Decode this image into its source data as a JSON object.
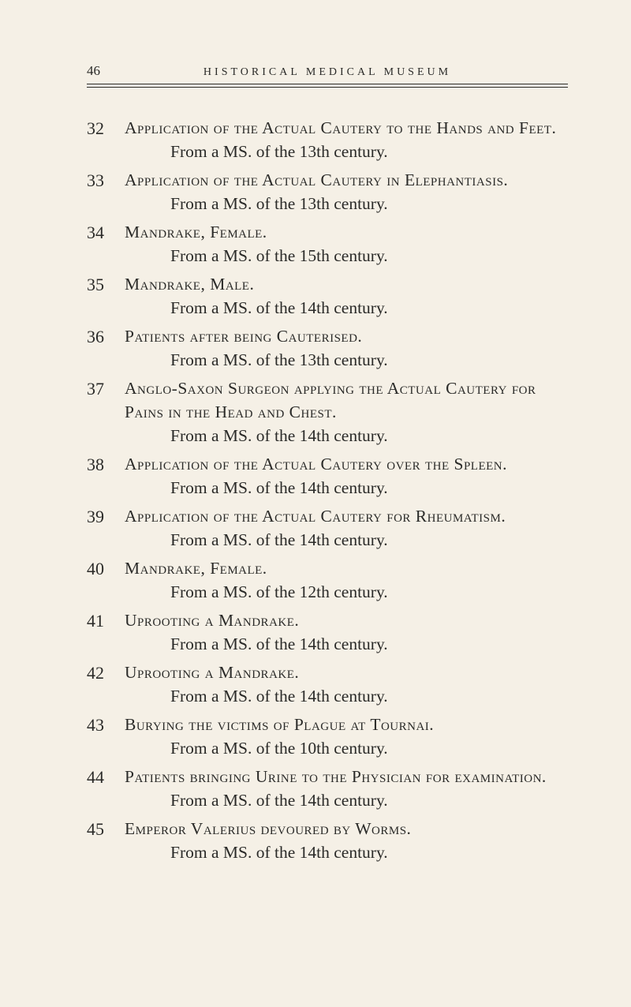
{
  "header": {
    "page_number": "46",
    "title": "HISTORICAL MEDICAL MUSEUM"
  },
  "entries": [
    {
      "num": "32",
      "title": "Application of the Actual Cautery to the Hands and Feet.",
      "source": "From a MS. of the 13th century."
    },
    {
      "num": "33",
      "title": "Application of the Actual Cautery in Elephantiasis.",
      "source": "From a MS. of the 13th century."
    },
    {
      "num": "34",
      "title": "Mandrake, Female.",
      "source": "From a MS. of the 15th century."
    },
    {
      "num": "35",
      "title": "Mandrake, Male.",
      "source": "From a MS. of the 14th century."
    },
    {
      "num": "36",
      "title": "Patients after being Cauterised.",
      "source": "From a MS. of the 13th century."
    },
    {
      "num": "37",
      "title": "Anglo-Saxon Surgeon applying the Actual Cautery for Pains in the Head and Chest.",
      "source": "From a MS. of the 14th century."
    },
    {
      "num": "38",
      "title": "Application of the Actual Cautery over the Spleen.",
      "source": "From a MS. of the 14th century."
    },
    {
      "num": "39",
      "title": "Application of the Actual Cautery for Rheumatism.",
      "source": "From a MS. of the 14th century."
    },
    {
      "num": "40",
      "title": "Mandrake, Female.",
      "source": "From a MS. of the 12th century."
    },
    {
      "num": "41",
      "title": "Uprooting a Mandrake.",
      "source": "From a MS. of the 14th century."
    },
    {
      "num": "42",
      "title": "Uprooting a Mandrake.",
      "source": "From a MS. of the 14th century."
    },
    {
      "num": "43",
      "title": "Burying the victims of Plague at Tournai.",
      "source": "From a MS. of the 10th century."
    },
    {
      "num": "44",
      "title": "Patients bringing Urine to the Physician for examination.",
      "source": "From a MS. of the 14th century."
    },
    {
      "num": "45",
      "title": "Emperor Valerius devoured by Worms.",
      "source": "From a MS. of the 14th century."
    }
  ]
}
